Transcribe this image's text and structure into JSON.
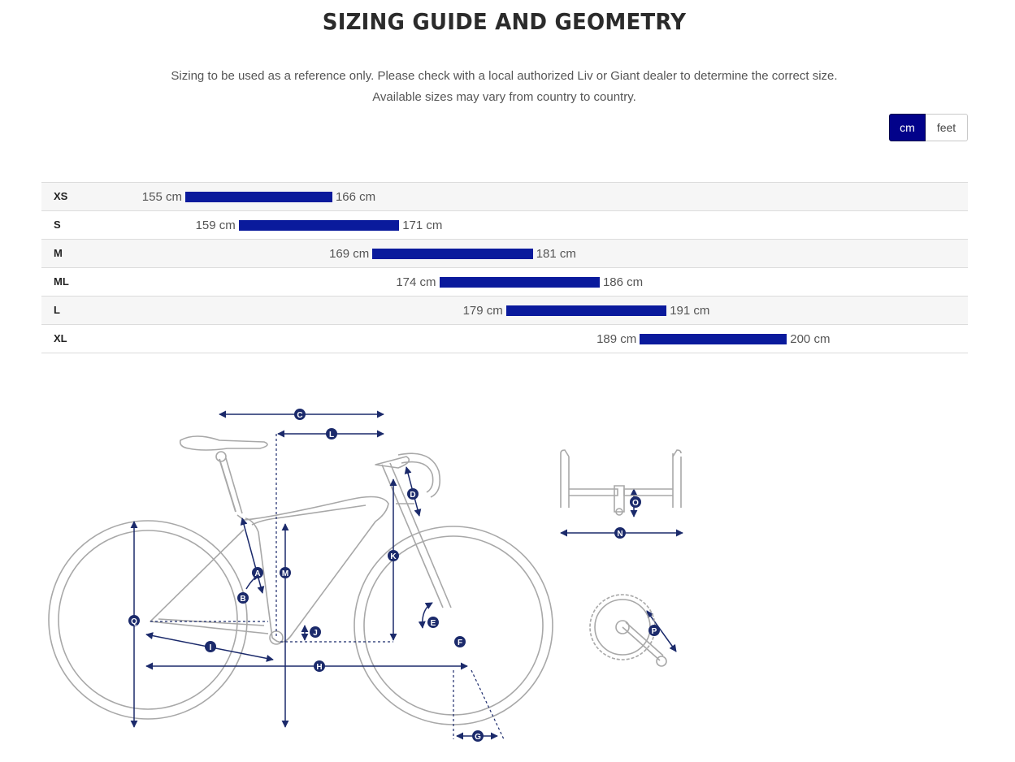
{
  "header": {
    "title": "SIZING GUIDE AND GEOMETRY",
    "disclaimer_line1": "Sizing to be used as a reference only. Please check with a local authorized Liv or Giant dealer to determine the correct size.",
    "disclaimer_line2": "Available sizes may vary from country to country."
  },
  "units": {
    "options": [
      "cm",
      "feet"
    ],
    "selected": "cm",
    "active_color": "#02028a"
  },
  "size_chart": {
    "bar_color": "#0a1a9c",
    "scale_min_cm": 155,
    "scale_max_cm": 200,
    "rows": [
      {
        "size": "XS",
        "min": 155,
        "max": 166,
        "min_label": "155 cm",
        "max_label": "166 cm"
      },
      {
        "size": "S",
        "min": 159,
        "max": 171,
        "min_label": "159 cm",
        "max_label": "171 cm"
      },
      {
        "size": "M",
        "min": 169,
        "max": 181,
        "min_label": "169 cm",
        "max_label": "181 cm"
      },
      {
        "size": "ML",
        "min": 174,
        "max": 186,
        "min_label": "174 cm",
        "max_label": "186 cm"
      },
      {
        "size": "L",
        "min": 179,
        "max": 191,
        "min_label": "179 cm",
        "max_label": "191 cm"
      },
      {
        "size": "XL",
        "min": 189,
        "max": 200,
        "min_label": "189 cm",
        "max_label": "200 cm"
      }
    ]
  },
  "geometry_diagram": {
    "marker_color": "#1b2a6b",
    "labels": [
      "A",
      "B",
      "C",
      "D",
      "E",
      "F",
      "G",
      "H",
      "I",
      "J",
      "K",
      "L",
      "M",
      "N",
      "O",
      "P",
      "Q"
    ]
  }
}
